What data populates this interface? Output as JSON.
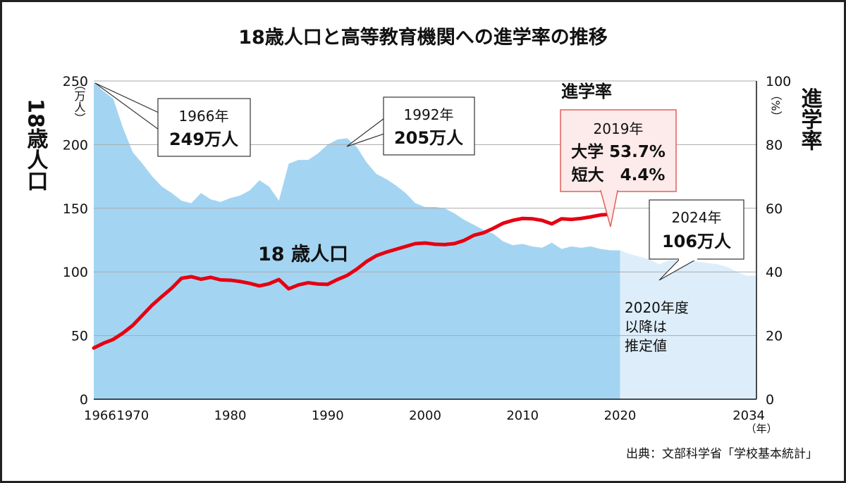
{
  "title": "18歳人口と高等教育機関への進学率の推移",
  "source": "出典：文部科学省「学校基本統計」",
  "left_axis": {
    "label": "18歳人口",
    "unit": "（万人）",
    "ticks": [
      "0",
      "50",
      "100",
      "150",
      "200",
      "250"
    ]
  },
  "right_axis": {
    "label": "進学率",
    "unit": "（%）",
    "ticks": [
      "0",
      "20",
      "40",
      "60",
      "80",
      "100"
    ]
  },
  "x_axis": {
    "ticks": [
      "1966",
      "1970",
      "1980",
      "1990",
      "2000",
      "2010",
      "2020",
      "2034"
    ],
    "unit": "（年）"
  },
  "labels": {
    "population_area": "18 歳人口",
    "rate_line": "進学率",
    "estimate_note": [
      "2020年度",
      "以降は",
      "推定値"
    ]
  },
  "callouts": {
    "c1966": {
      "year": "1966年",
      "value": "249万人"
    },
    "c1992": {
      "year": "1992年",
      "value": "205万人"
    },
    "c2024": {
      "year": "2024年",
      "value": "106万人"
    },
    "c2019": {
      "year": "2019年",
      "line1": "大学 53.7%",
      "line2": "短大　4.4%"
    }
  },
  "colors": {
    "population_fill": "#a3d5f2",
    "estimate_fill": "#ddeefa",
    "rate_line": "#e50012",
    "grid": "#aaaaaa",
    "callout_red_border": "#e0605a",
    "callout_red_fill": "#fdeaea"
  },
  "chart_data": {
    "type": "area",
    "x_range": [
      1966,
      2034
    ],
    "ylim_left": [
      0,
      250
    ],
    "ylim_right": [
      0,
      100
    ],
    "series": [
      {
        "name": "18歳人口",
        "axis": "left",
        "unit": "万人",
        "x": [
          1966,
          1967,
          1968,
          1969,
          1970,
          1971,
          1972,
          1973,
          1974,
          1975,
          1976,
          1977,
          1978,
          1979,
          1980,
          1981,
          1982,
          1983,
          1984,
          1985,
          1986,
          1987,
          1988,
          1989,
          1990,
          1991,
          1992,
          1993,
          1994,
          1995,
          1996,
          1997,
          1998,
          1999,
          2000,
          2001,
          2002,
          2003,
          2004,
          2005,
          2006,
          2007,
          2008,
          2009,
          2010,
          2011,
          2012,
          2013,
          2014,
          2015,
          2016,
          2017,
          2018,
          2019,
          2020
        ],
        "values": [
          249,
          242,
          236,
          213,
          194,
          185,
          175,
          167,
          162,
          156,
          154,
          162,
          157,
          155,
          158,
          160,
          164,
          172,
          167,
          156,
          185,
          188,
          188,
          193,
          200,
          204,
          205,
          198,
          186,
          177,
          173,
          168,
          162,
          154,
          151,
          151,
          150,
          146,
          141,
          137,
          133,
          130,
          124,
          121,
          122,
          120,
          119,
          123,
          118,
          120,
          119,
          120,
          118,
          117,
          117
        ]
      },
      {
        "name": "推定値",
        "axis": "left",
        "unit": "万人",
        "x": [
          2020,
          2021,
          2022,
          2023,
          2024,
          2025,
          2026,
          2027,
          2028,
          2029,
          2030,
          2031,
          2032,
          2033,
          2034
        ],
        "values": [
          117,
          114,
          112,
          110,
          106,
          109,
          109,
          109,
          108,
          107,
          106,
          104,
          100,
          97,
          97
        ]
      },
      {
        "name": "進学率",
        "axis": "right",
        "unit": "%",
        "x": [
          1966,
          1967,
          1968,
          1969,
          1970,
          1971,
          1972,
          1973,
          1974,
          1975,
          1976,
          1977,
          1978,
          1979,
          1980,
          1981,
          1982,
          1983,
          1984,
          1985,
          1986,
          1987,
          1988,
          1989,
          1990,
          1991,
          1992,
          1993,
          1994,
          1995,
          1996,
          1997,
          1998,
          1999,
          2000,
          2001,
          2002,
          2003,
          2004,
          2005,
          2006,
          2007,
          2008,
          2009,
          2010,
          2011,
          2012,
          2013,
          2014,
          2015,
          2016,
          2017,
          2018,
          2019
        ],
        "values": [
          16.1,
          17.6,
          18.8,
          20.8,
          23.2,
          26.4,
          29.6,
          32.3,
          34.9,
          38.0,
          38.5,
          37.7,
          38.3,
          37.5,
          37.4,
          37.0,
          36.4,
          35.6,
          36.3,
          37.6,
          34.7,
          35.9,
          36.6,
          36.2,
          36.1,
          37.6,
          38.9,
          40.9,
          43.3,
          45.1,
          46.2,
          47.1,
          48.0,
          48.9,
          49.1,
          48.7,
          48.6,
          48.9,
          49.9,
          51.5,
          52.3,
          53.7,
          55.3,
          56.2,
          56.8,
          56.7,
          56.2,
          55.1,
          56.7,
          56.5,
          56.8,
          57.3,
          57.9,
          58.1
        ]
      }
    ]
  }
}
